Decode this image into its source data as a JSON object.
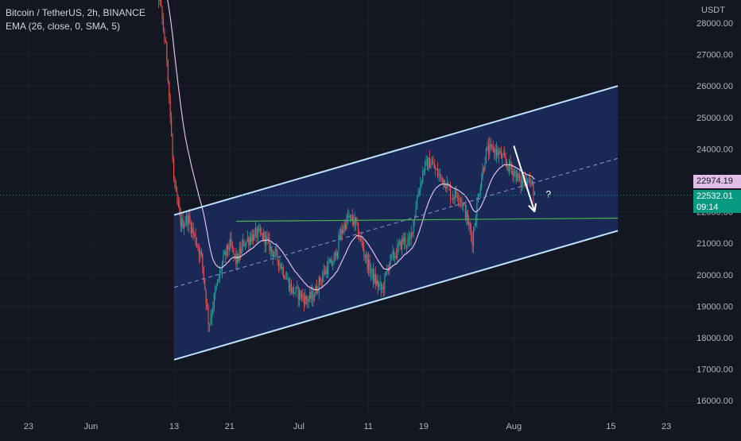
{
  "legend": {
    "symbol": "Bitcoin / TetherUS, 2h, BINANCE",
    "indicator": "EMA (26, close, 0, SMA, 5)"
  },
  "colors": {
    "background": "#131722",
    "grid": "#1e2230",
    "axis_text": "#b2b5be",
    "candle_up": "#26a69a",
    "candle_down": "#ef5350",
    "ema": "#e1bee7",
    "channel_line": "#bfe3ff",
    "channel_fill": "#1c2b5e",
    "support_line": "#4caf50",
    "ema_tag": "#e1bee7",
    "price_tag": "#089981"
  },
  "price_axis": {
    "unit": "USDT",
    "ticks": [
      "28000.00",
      "27000.00",
      "26000.00",
      "25000.00",
      "24000.00",
      "22000.00",
      "21000.00",
      "20000.00",
      "19000.00",
      "18000.00",
      "17000.00",
      "16000.00"
    ],
    "ema_tag": "22974.19",
    "price_tag": "22532.01",
    "countdown": "09:14"
  },
  "time_axis": {
    "ticks": [
      "23",
      "Jun",
      "13",
      "21",
      "Jul",
      "11",
      "19",
      "Aug",
      "15",
      "23"
    ]
  },
  "annotation": {
    "question": "?"
  },
  "chart_data": {
    "type": "candlestick",
    "symbol": "Bitcoin / TetherUS",
    "interval": "2h",
    "exchange": "BINANCE",
    "y_unit": "USDT",
    "ylim": [
      15600,
      29000
    ],
    "xlim": [
      "2022-05-19",
      "2022-08-25"
    ],
    "indicator": "EMA (26, close, 0, SMA, 5)",
    "price_path": [
      [
        "2022-06-10",
        29600
      ],
      [
        "2022-06-11",
        28600
      ],
      [
        "2022-06-12",
        26800
      ],
      [
        "2022-06-13",
        22800
      ],
      [
        "2022-06-14",
        21600
      ],
      [
        "2022-06-15",
        21800
      ],
      [
        "2022-06-16",
        21200
      ],
      [
        "2022-06-17",
        20500
      ],
      [
        "2022-06-18",
        18400
      ],
      [
        "2022-06-19",
        19500
      ],
      [
        "2022-06-20",
        20400
      ],
      [
        "2022-06-21",
        21000
      ],
      [
        "2022-06-22",
        20400
      ],
      [
        "2022-06-23",
        21000
      ],
      [
        "2022-06-24",
        21200
      ],
      [
        "2022-06-25",
        21300
      ],
      [
        "2022-06-26",
        21200
      ],
      [
        "2022-06-27",
        20800
      ],
      [
        "2022-06-28",
        20500
      ],
      [
        "2022-06-29",
        20000
      ],
      [
        "2022-06-30",
        19500
      ],
      [
        "2022-07-01",
        19400
      ],
      [
        "2022-07-02",
        19200
      ],
      [
        "2022-07-03",
        19300
      ],
      [
        "2022-07-04",
        19800
      ],
      [
        "2022-07-05",
        20200
      ],
      [
        "2022-07-06",
        20400
      ],
      [
        "2022-07-07",
        21300
      ],
      [
        "2022-07-08",
        21800
      ],
      [
        "2022-07-09",
        21700
      ],
      [
        "2022-07-10",
        21000
      ],
      [
        "2022-07-11",
        20300
      ],
      [
        "2022-07-12",
        19800
      ],
      [
        "2022-07-13",
        19500
      ],
      [
        "2022-07-14",
        20400
      ],
      [
        "2022-07-15",
        20700
      ],
      [
        "2022-07-16",
        21100
      ],
      [
        "2022-07-17",
        21000
      ],
      [
        "2022-07-18",
        22400
      ],
      [
        "2022-07-19",
        23400
      ],
      [
        "2022-07-20",
        23600
      ],
      [
        "2022-07-21",
        23200
      ],
      [
        "2022-07-22",
        23000
      ],
      [
        "2022-07-23",
        22500
      ],
      [
        "2022-07-24",
        22600
      ],
      [
        "2022-07-25",
        22000
      ],
      [
        "2022-07-26",
        21100
      ],
      [
        "2022-07-27",
        22700
      ],
      [
        "2022-07-28",
        23900
      ],
      [
        "2022-07-29",
        24000
      ],
      [
        "2022-07-30",
        23800
      ],
      [
        "2022-07-31",
        23500
      ],
      [
        "2022-08-01",
        23300
      ],
      [
        "2022-08-02",
        22900
      ],
      [
        "2022-08-03",
        23100
      ],
      [
        "2022-08-04",
        22600
      ]
    ],
    "drawings": {
      "channel_upper": [
        [
          "2022-06-13",
          17300
        ],
        [
          "2022-08-16",
          21400
        ]
      ],
      "channel_lower": [
        [
          "2022-06-13",
          21900
        ],
        [
          "2022-08-16",
          26000
        ]
      ],
      "channel_midline": [
        [
          "2022-06-13",
          19600
        ],
        [
          "2022-08-16",
          23700
        ]
      ],
      "support_line": [
        [
          "2022-06-22",
          21700
        ],
        [
          "2022-08-16",
          21800
        ]
      ],
      "arrow": [
        [
          "2022-08-01",
          24100
        ],
        [
          "2022-08-04",
          22000
        ]
      ]
    }
  }
}
